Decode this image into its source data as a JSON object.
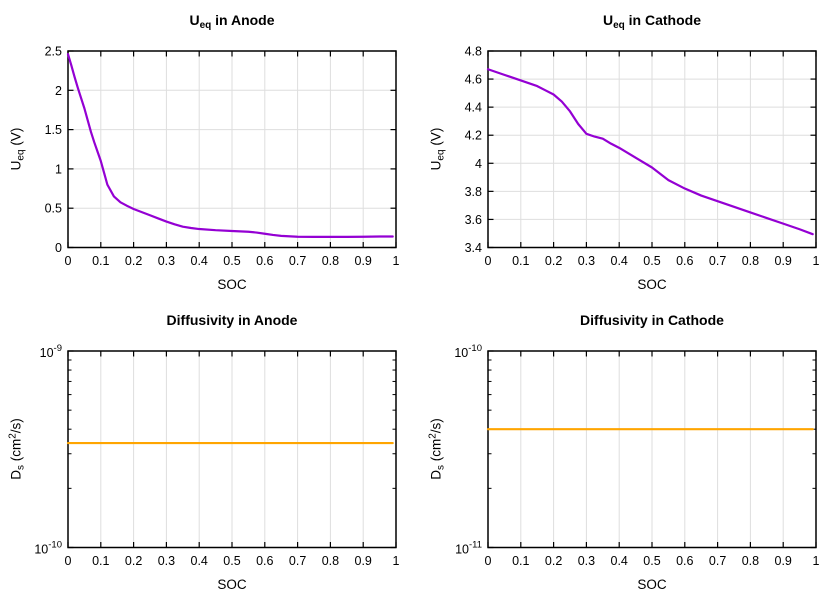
{
  "page": {
    "background": "#ffffff"
  },
  "style": {
    "grid_color": "#dedede",
    "axis_color": "#000000",
    "text_color": "#000000",
    "purple": "#9400d3",
    "orange": "#ffa500"
  },
  "chart_data": [
    {
      "id": "ueq-anode",
      "type": "line",
      "title": {
        "base": "U",
        "sub": "eq",
        "rest": " in Anode"
      },
      "xlabel": "SOC",
      "ylabel": {
        "base": "U",
        "sub": "eq",
        "mid": " (V)",
        "sup": "",
        "end": ""
      },
      "xlim": [
        0,
        1
      ],
      "ylim": [
        0,
        2.5
      ],
      "log_y": false,
      "grid_y": true,
      "x_ticks": [
        {
          "v": 0,
          "label": "0"
        },
        {
          "v": 0.1,
          "label": "0.1"
        },
        {
          "v": 0.2,
          "label": "0.2"
        },
        {
          "v": 0.3,
          "label": "0.3"
        },
        {
          "v": 0.4,
          "label": "0.4"
        },
        {
          "v": 0.5,
          "label": "0.5"
        },
        {
          "v": 0.6,
          "label": "0.6"
        },
        {
          "v": 0.7,
          "label": "0.7"
        },
        {
          "v": 0.8,
          "label": "0.8"
        },
        {
          "v": 0.9,
          "label": "0.9"
        },
        {
          "v": 1,
          "label": "1"
        }
      ],
      "y_ticks": [
        {
          "v": 0,
          "label": "0"
        },
        {
          "v": 0.5,
          "label": "0.5"
        },
        {
          "v": 1,
          "label": "1"
        },
        {
          "v": 1.5,
          "label": "1.5"
        },
        {
          "v": 2,
          "label": "2"
        },
        {
          "v": 2.5,
          "label": "2.5"
        }
      ],
      "series": {
        "name": "Ueq anode",
        "color": "#9400d3",
        "x": [
          0,
          0.01,
          0.02,
          0.03,
          0.04,
          0.05,
          0.06,
          0.07,
          0.08,
          0.09,
          0.1,
          0.11,
          0.12,
          0.14,
          0.16,
          0.18,
          0.2,
          0.225,
          0.25,
          0.275,
          0.3,
          0.325,
          0.35,
          0.375,
          0.4,
          0.45,
          0.5,
          0.55,
          0.575,
          0.6,
          0.625,
          0.65,
          0.7,
          0.75,
          0.8,
          0.85,
          0.9,
          0.95,
          0.99
        ],
        "y": [
          2.46,
          2.32,
          2.17,
          2.03,
          1.9,
          1.77,
          1.62,
          1.47,
          1.34,
          1.22,
          1.1,
          0.95,
          0.8,
          0.65,
          0.575,
          0.53,
          0.49,
          0.45,
          0.41,
          0.37,
          0.33,
          0.295,
          0.265,
          0.248,
          0.235,
          0.22,
          0.21,
          0.2,
          0.19,
          0.175,
          0.16,
          0.148,
          0.137,
          0.135,
          0.135,
          0.135,
          0.137,
          0.14,
          0.14
        ]
      }
    },
    {
      "id": "ueq-cathode",
      "type": "line",
      "title": {
        "base": "U",
        "sub": "eq",
        "rest": " in Cathode"
      },
      "xlabel": "SOC",
      "ylabel": {
        "base": "U",
        "sub": "eq",
        "mid": " (V)",
        "sup": "",
        "end": ""
      },
      "xlim": [
        0,
        1
      ],
      "ylim": [
        3.4,
        4.8
      ],
      "log_y": false,
      "grid_y": true,
      "x_ticks": [
        {
          "v": 0,
          "label": "0"
        },
        {
          "v": 0.1,
          "label": "0.1"
        },
        {
          "v": 0.2,
          "label": "0.2"
        },
        {
          "v": 0.3,
          "label": "0.3"
        },
        {
          "v": 0.4,
          "label": "0.4"
        },
        {
          "v": 0.5,
          "label": "0.5"
        },
        {
          "v": 0.6,
          "label": "0.6"
        },
        {
          "v": 0.7,
          "label": "0.7"
        },
        {
          "v": 0.8,
          "label": "0.8"
        },
        {
          "v": 0.9,
          "label": "0.9"
        },
        {
          "v": 1,
          "label": "1"
        }
      ],
      "y_ticks": [
        {
          "v": 3.4,
          "label": "3.4"
        },
        {
          "v": 3.6,
          "label": "3.6"
        },
        {
          "v": 3.8,
          "label": "3.8"
        },
        {
          "v": 4,
          "label": "4"
        },
        {
          "v": 4.2,
          "label": "4.2"
        },
        {
          "v": 4.4,
          "label": "4.4"
        },
        {
          "v": 4.6,
          "label": "4.6"
        },
        {
          "v": 4.8,
          "label": "4.8"
        }
      ],
      "series": {
        "name": "Ueq cathode",
        "color": "#9400d3",
        "x": [
          0,
          0.05,
          0.1,
          0.15,
          0.175,
          0.2,
          0.225,
          0.25,
          0.275,
          0.3,
          0.325,
          0.35,
          0.375,
          0.4,
          0.45,
          0.5,
          0.55,
          0.6,
          0.65,
          0.7,
          0.75,
          0.8,
          0.85,
          0.9,
          0.95,
          0.99
        ],
        "y": [
          4.67,
          4.63,
          4.59,
          4.55,
          4.52,
          4.49,
          4.44,
          4.37,
          4.28,
          4.21,
          4.19,
          4.175,
          4.14,
          4.11,
          4.04,
          3.97,
          3.88,
          3.82,
          3.77,
          3.73,
          3.69,
          3.65,
          3.61,
          3.57,
          3.53,
          3.495
        ]
      }
    },
    {
      "id": "diffusivity-anode",
      "type": "line",
      "title": {
        "base": "Diffusivity in Anode",
        "sub": "",
        "rest": ""
      },
      "xlabel": "SOC",
      "ylabel": {
        "base": "D",
        "sub": "s",
        "mid": " (cm",
        "sup": "2",
        "end": "/s)"
      },
      "xlim": [
        0,
        1
      ],
      "ylim": [
        1e-10,
        1e-09
      ],
      "log_y": true,
      "grid_y": false,
      "x_ticks": [
        {
          "v": 0,
          "label": "0"
        },
        {
          "v": 0.1,
          "label": "0.1"
        },
        {
          "v": 0.2,
          "label": "0.2"
        },
        {
          "v": 0.3,
          "label": "0.3"
        },
        {
          "v": 0.4,
          "label": "0.4"
        },
        {
          "v": 0.5,
          "label": "0.5"
        },
        {
          "v": 0.6,
          "label": "0.6"
        },
        {
          "v": 0.7,
          "label": "0.7"
        },
        {
          "v": 0.8,
          "label": "0.8"
        },
        {
          "v": 0.9,
          "label": "0.9"
        },
        {
          "v": 1,
          "label": "1"
        }
      ],
      "y_ticks": [
        {
          "v": 1e-10,
          "label": "10",
          "exp": "-10"
        },
        {
          "v": 1e-09,
          "label": "10",
          "exp": "-9"
        }
      ],
      "series": {
        "name": "Ds anode",
        "color": "#ffa500",
        "x": [
          0,
          0.99
        ],
        "y": [
          3.4e-10,
          3.4e-10
        ]
      }
    },
    {
      "id": "diffusivity-cathode",
      "type": "line",
      "title": {
        "base": "Diffusivity in Cathode",
        "sub": "",
        "rest": ""
      },
      "xlabel": "SOC",
      "ylabel": {
        "base": "D",
        "sub": "s",
        "mid": " (cm",
        "sup": "2",
        "end": "/s)"
      },
      "xlim": [
        0,
        1
      ],
      "ylim": [
        1e-11,
        1e-10
      ],
      "log_y": true,
      "grid_y": false,
      "x_ticks": [
        {
          "v": 0,
          "label": "0"
        },
        {
          "v": 0.1,
          "label": "0.1"
        },
        {
          "v": 0.2,
          "label": "0.2"
        },
        {
          "v": 0.3,
          "label": "0.3"
        },
        {
          "v": 0.4,
          "label": "0.4"
        },
        {
          "v": 0.5,
          "label": "0.5"
        },
        {
          "v": 0.6,
          "label": "0.6"
        },
        {
          "v": 0.7,
          "label": "0.7"
        },
        {
          "v": 0.8,
          "label": "0.8"
        },
        {
          "v": 0.9,
          "label": "0.9"
        },
        {
          "v": 1,
          "label": "1"
        }
      ],
      "y_ticks": [
        {
          "v": 1e-11,
          "label": "10",
          "exp": "-11"
        },
        {
          "v": 1e-10,
          "label": "10",
          "exp": "-10"
        }
      ],
      "series": {
        "name": "Ds cathode",
        "color": "#ffa500",
        "x": [
          0,
          0.99
        ],
        "y": [
          4e-11,
          4e-11
        ]
      }
    }
  ]
}
